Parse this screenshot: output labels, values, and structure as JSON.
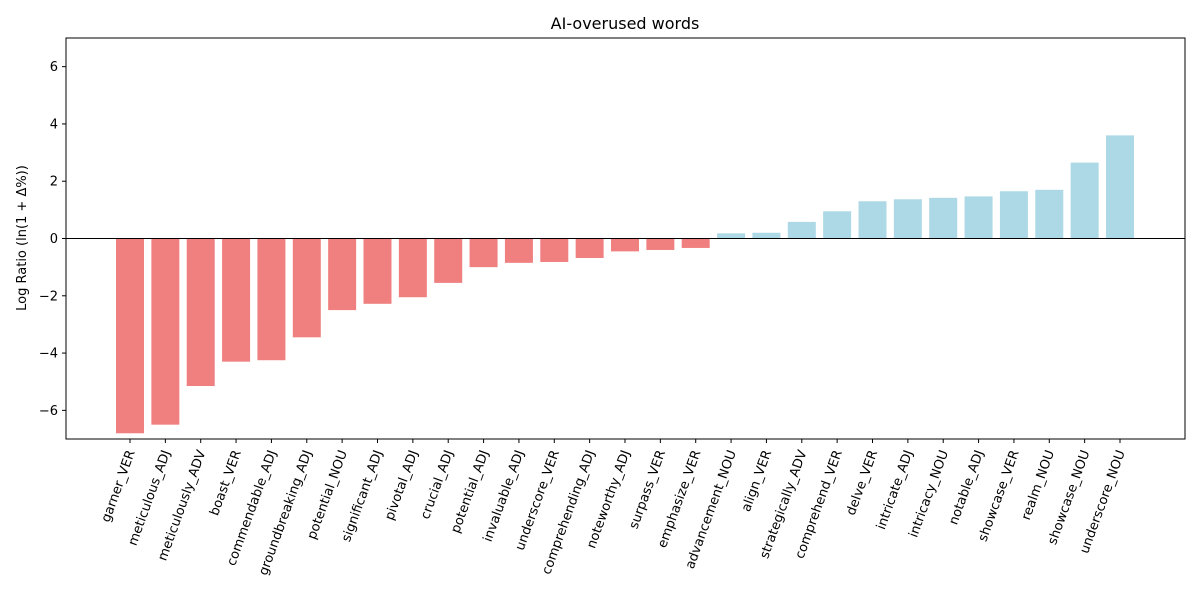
{
  "chart_data": {
    "type": "bar",
    "title": "AI-overused words",
    "xlabel": "",
    "ylabel": "Log Ratio (ln(1 + Δ%))",
    "ylim": [
      -7,
      7
    ],
    "yticks": [
      -6,
      -4,
      -2,
      0,
      2,
      4,
      6
    ],
    "negative_color": "#f08080",
    "positive_color": "#add8e6",
    "zero_line": true,
    "grid": false,
    "categories": [
      "garner_VER",
      "meticulous_ADJ",
      "meticulously_ADV",
      "boast_VER",
      "commendable_ADJ",
      "groundbreaking_ADJ",
      "potential_NOU",
      "significant_ADJ",
      "pivotal_ADJ",
      "crucial_ADJ",
      "potential_ADJ",
      "invaluable_ADJ",
      "underscore_VER",
      "comprehending_ADJ",
      "noteworthy_ADJ",
      "surpass_VER",
      "emphasize_VER",
      "advancement_NOU",
      "align_VER",
      "strategically_ADV",
      "comprehend_VER",
      "delve_VER",
      "intricate_ADJ",
      "intricacy_NOU",
      "notable_ADJ",
      "showcase_VER",
      "realm_NOU",
      "showcase_NOU",
      "underscore_NOU"
    ],
    "values": [
      -6.8,
      -6.5,
      -5.15,
      -4.3,
      -4.25,
      -3.45,
      -2.5,
      -2.28,
      -2.05,
      -1.55,
      -1.0,
      -0.85,
      -0.82,
      -0.68,
      -0.45,
      -0.4,
      -0.33,
      0.18,
      0.2,
      0.58,
      0.95,
      1.3,
      1.37,
      1.42,
      1.47,
      1.65,
      1.7,
      2.65,
      3.6
    ]
  }
}
